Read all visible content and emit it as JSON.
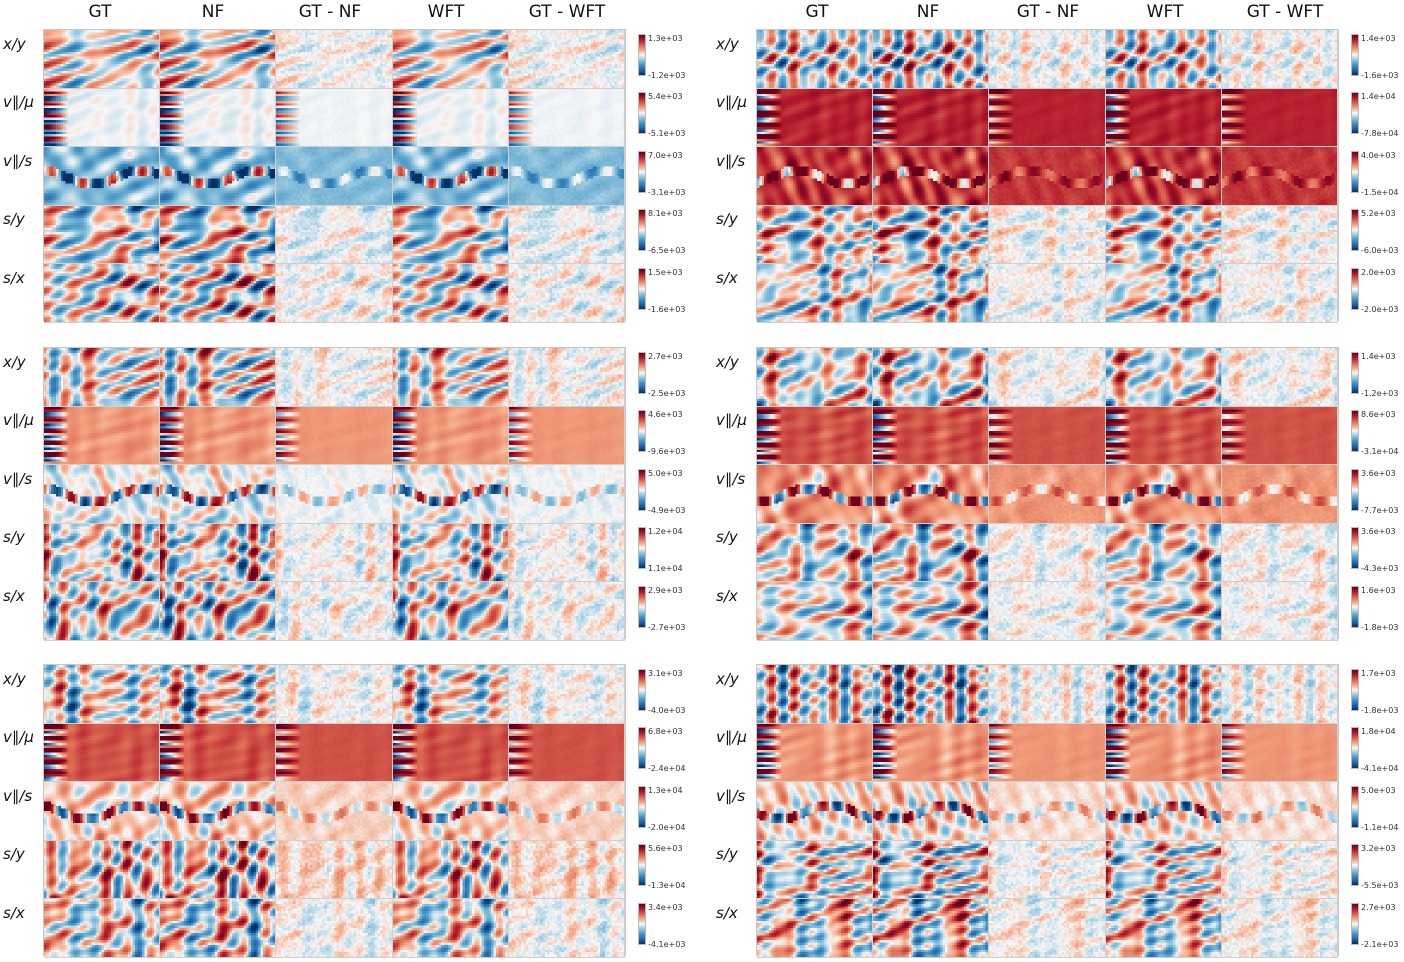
{
  "column_headers": [
    "GT",
    "NF",
    "GT - NF",
    "WFT",
    "GT - WFT"
  ],
  "row_labels": [
    "x/y",
    "v∥/μ",
    "v∥/s",
    "s/y",
    "s/x"
  ],
  "chart_data": {
    "type": "heatmap",
    "colormap": "RdBu_r",
    "columns": [
      "GT",
      "NF",
      "GT - NF",
      "WFT",
      "GT - WFT"
    ],
    "rows": [
      "x/y",
      "v∥/μ",
      "v∥/s",
      "s/y",
      "s/x"
    ],
    "panels": [
      {
        "position": "top-left",
        "colorbars": [
          {
            "max": "1.3e+03",
            "min": "-1.2e+03"
          },
          {
            "max": "5.4e+03",
            "min": "-5.1e+03"
          },
          {
            "max": "7.0e+03",
            "min": "-3.1e+03"
          },
          {
            "max": "8.1e+03",
            "min": "-6.5e+03"
          },
          {
            "max": "1.5e+03",
            "min": "-1.6e+03"
          }
        ]
      },
      {
        "position": "top-right",
        "colorbars": [
          {
            "max": "1.4e+03",
            "min": "-1.6e+03"
          },
          {
            "max": "1.4e+04",
            "min": "-7.8e+04"
          },
          {
            "max": "4.0e+03",
            "min": "-1.5e+04"
          },
          {
            "max": "5.2e+03",
            "min": "-6.0e+03"
          },
          {
            "max": "2.0e+03",
            "min": "-2.0e+03"
          }
        ]
      },
      {
        "position": "middle-left",
        "colorbars": [
          {
            "max": "2.7e+03",
            "min": "-2.5e+03"
          },
          {
            "max": "4.6e+03",
            "min": "-9.6e+03"
          },
          {
            "max": "5.0e+03",
            "min": "-4.9e+03"
          },
          {
            "max": "1.2e+04",
            "min": "1.1e+04"
          },
          {
            "max": "2.9e+03",
            "min": "-2.7e+03"
          }
        ]
      },
      {
        "position": "middle-right",
        "colorbars": [
          {
            "max": "1.4e+03",
            "min": "-1.2e+03"
          },
          {
            "max": "8.6e+03",
            "min": "-3.1e+04"
          },
          {
            "max": "3.6e+03",
            "min": "-7.7e+03"
          },
          {
            "max": "3.6e+03",
            "min": "-4.3e+03"
          },
          {
            "max": "1.6e+03",
            "min": "-1.8e+03"
          }
        ]
      },
      {
        "position": "bottom-left",
        "colorbars": [
          {
            "max": "3.1e+03",
            "min": "-4.0e+03"
          },
          {
            "max": "6.8e+03",
            "min": "-2.4e+04"
          },
          {
            "max": "1.3e+04",
            "min": "-2.0e+04"
          },
          {
            "max": "5.6e+03",
            "min": "-1.3e+04"
          },
          {
            "max": "3.4e+03",
            "min": "-4.1e+03"
          }
        ]
      },
      {
        "position": "bottom-right",
        "colorbars": [
          {
            "max": "1.7e+03",
            "min": "-1.8e+03"
          },
          {
            "max": "1.8e+04",
            "min": "-4.1e+04"
          },
          {
            "max": "5.0e+03",
            "min": "-1.1e+04"
          },
          {
            "max": "3.2e+03",
            "min": "-5.5e+03"
          },
          {
            "max": "2.7e+03",
            "min": "-2.1e+03"
          }
        ]
      }
    ]
  }
}
